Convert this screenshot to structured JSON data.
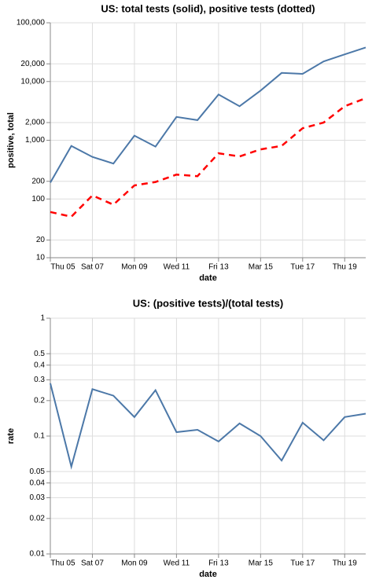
{
  "chart_data": [
    {
      "type": "line",
      "title": "US: total tests (solid), positive tests (dotted)",
      "x_label": "date",
      "y_label": "positive, total",
      "x": [
        5,
        6,
        7,
        8,
        9,
        10,
        11,
        12,
        13,
        14,
        15,
        16,
        17,
        18,
        19,
        20
      ],
      "xlim": [
        5,
        20
      ],
      "xticks": [
        {
          "value": 5,
          "label": "Thu 05"
        },
        {
          "value": 7,
          "label": "Sat 07"
        },
        {
          "value": 9,
          "label": "Mon 09"
        },
        {
          "value": 11,
          "label": "Wed 11"
        },
        {
          "value": 13,
          "label": "Fri 13"
        },
        {
          "value": 15,
          "label": "Mar 15"
        },
        {
          "value": 17,
          "label": "Tue 17"
        },
        {
          "value": 19,
          "label": "Thu 19"
        }
      ],
      "ylim": [
        10,
        100000
      ],
      "log_y": true,
      "grid": true,
      "yticks": [
        10,
        20,
        100,
        200,
        {
          "value": 1000,
          "label": "1,000"
        },
        {
          "value": 2000,
          "label": "2,000"
        },
        {
          "value": 10000,
          "label": "10,000"
        },
        {
          "value": 20000,
          "label": "20,000"
        },
        {
          "value": 100000,
          "label": "100,000"
        }
      ],
      "series": [
        {
          "color": "#4c78a8",
          "style": "solid",
          "values": [
            190,
            800,
            520,
            400,
            1200,
            780,
            2500,
            2200,
            6000,
            3800,
            7000,
            14000,
            13500,
            22000,
            29000,
            38000
          ]
        },
        {
          "color": "#ff0000",
          "style": "dashed",
          "values": [
            60,
            50,
            115,
            80,
            170,
            195,
            260,
            245,
            600,
            530,
            700,
            800,
            1600,
            2000,
            3800,
            5200
          ]
        }
      ]
    },
    {
      "type": "line",
      "title": "US: (positive tests)/(total tests)",
      "x_label": "date",
      "y_label": "rate",
      "x": [
        5,
        6,
        7,
        8,
        9,
        10,
        11,
        12,
        13,
        14,
        15,
        16,
        17,
        18,
        19,
        20
      ],
      "xlim": [
        5,
        20
      ],
      "xticks": [
        {
          "value": 5,
          "label": "Thu 05"
        },
        {
          "value": 7,
          "label": "Sat 07"
        },
        {
          "value": 9,
          "label": "Mon 09"
        },
        {
          "value": 11,
          "label": "Wed 11"
        },
        {
          "value": 13,
          "label": "Fri 13"
        },
        {
          "value": 15,
          "label": "Mar 15"
        },
        {
          "value": 17,
          "label": "Tue 17"
        },
        {
          "value": 19,
          "label": "Thu 19"
        }
      ],
      "ylim": [
        0.01,
        1
      ],
      "log_y": true,
      "grid": true,
      "yticks": [
        0.01,
        0.02,
        0.03,
        0.04,
        0.05,
        0.1,
        0.2,
        0.3,
        0.4,
        0.5,
        1
      ],
      "series": [
        {
          "color": "#4c78a8",
          "style": "solid",
          "values": [
            0.28,
            0.055,
            0.25,
            0.22,
            0.145,
            0.245,
            0.108,
            0.113,
            0.09,
            0.128,
            0.1,
            0.062,
            0.13,
            0.092,
            0.145,
            0.155
          ]
        }
      ]
    }
  ]
}
